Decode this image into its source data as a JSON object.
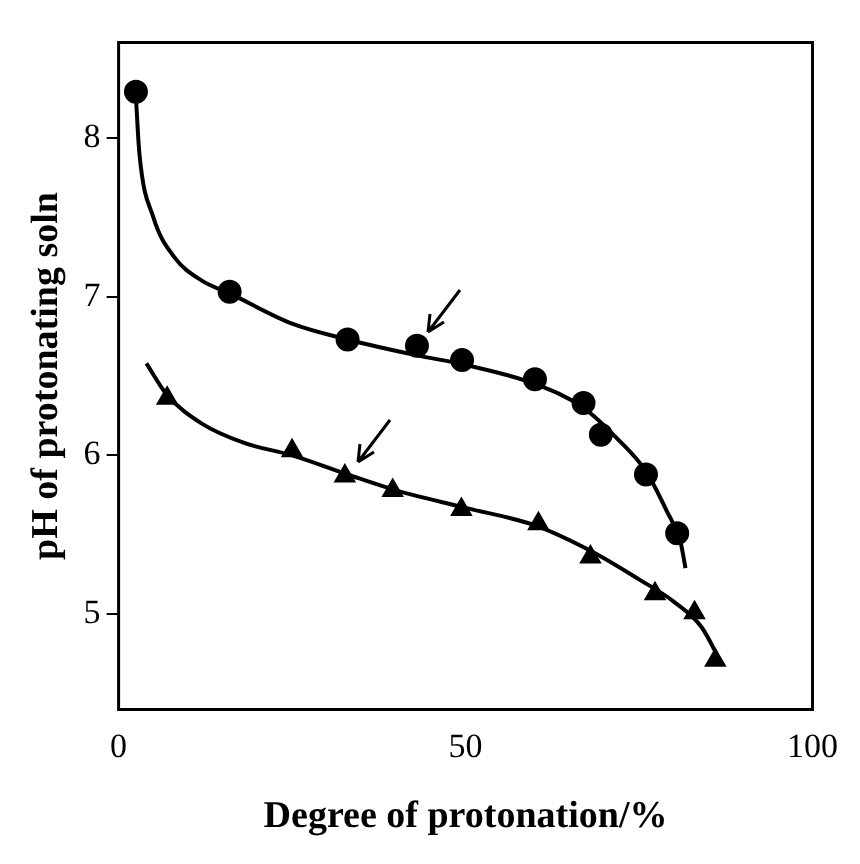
{
  "chart_data": {
    "type": "scatter",
    "xlabel": "Degree of protonation/%",
    "ylabel": "pH of protonating soln",
    "xlim": [
      0,
      100
    ],
    "xticks": [
      0,
      50,
      100
    ],
    "ylim": [
      4.4,
      8.6
    ],
    "yticks": [
      5,
      6,
      7,
      8
    ],
    "grid": false,
    "legend": false,
    "series": [
      {
        "type": "scatter",
        "marker": "circle",
        "color": "#000000",
        "x": [
          2.5,
          16,
          33,
          43,
          49.5,
          60,
          67,
          69.5,
          76,
          80.5
        ],
        "values": [
          8.29,
          7.03,
          6.73,
          6.69,
          6.6,
          6.48,
          6.33,
          6.13,
          5.88,
          5.51
        ]
      },
      {
        "type": "scatter",
        "marker": "triangle",
        "color": "#000000",
        "x": [
          7,
          25,
          32.6,
          39.5,
          49.4,
          60.5,
          68,
          77.3,
          83,
          86
        ],
        "values": [
          6.36,
          6.03,
          5.87,
          5.78,
          5.66,
          5.57,
          5.36,
          5.13,
          5.01,
          4.71
        ]
      },
      {
        "type": "line",
        "marker": "none",
        "line_style": "solid",
        "color": "#000000",
        "x": [
          2.5,
          3,
          5,
          8,
          12,
          16,
          25,
          33,
          43,
          50,
          60,
          67,
          72,
          76,
          79,
          81,
          81.7
        ],
        "values": [
          8.25,
          7.9,
          7.5,
          7.25,
          7.1,
          7.02,
          6.83,
          6.73,
          6.63,
          6.57,
          6.45,
          6.3,
          6.1,
          5.9,
          5.65,
          5.45,
          5.29
        ]
      },
      {
        "type": "line",
        "marker": "none",
        "line_style": "solid",
        "color": "#000000",
        "x": [
          4,
          7,
          12,
          18,
          25,
          33,
          40,
          50,
          60,
          68,
          75,
          80,
          84,
          87
        ],
        "values": [
          6.58,
          6.38,
          6.2,
          6.08,
          6.0,
          5.88,
          5.78,
          5.67,
          5.56,
          5.4,
          5.22,
          5.08,
          4.92,
          4.68
        ]
      }
    ]
  }
}
